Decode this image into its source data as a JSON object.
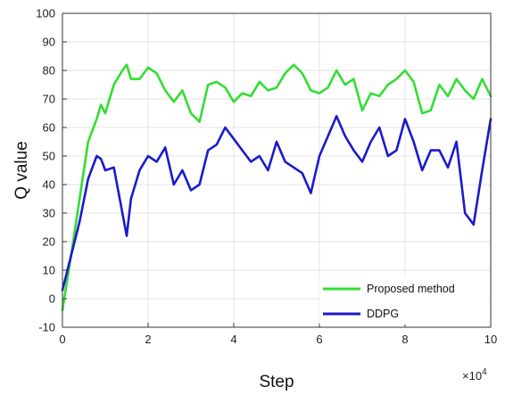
{
  "chart_data": {
    "type": "line",
    "xlabel": "Step",
    "ylabel": "Q value",
    "x_exponent_label": "×10",
    "x_exponent_power": "4",
    "xlim": [
      0,
      10
    ],
    "ylim": [
      -10,
      100
    ],
    "xticks": [
      0,
      2,
      4,
      6,
      8,
      10
    ],
    "xtick_labels": [
      "0",
      "2",
      "4",
      "6",
      "8",
      "10"
    ],
    "yticks": [
      -10,
      0,
      10,
      20,
      30,
      40,
      50,
      60,
      70,
      80,
      90,
      100
    ],
    "ytick_labels": [
      "-10",
      "0",
      "10",
      "20",
      "30",
      "40",
      "50",
      "60",
      "70",
      "80",
      "90",
      "100"
    ],
    "grid": true,
    "legend_position": "bottom-right",
    "series": [
      {
        "name": "Proposed method",
        "color": "#33dd33",
        "x": [
          0,
          0.2,
          0.4,
          0.6,
          0.8,
          0.9,
          1.0,
          1.2,
          1.4,
          1.5,
          1.6,
          1.8,
          2.0,
          2.2,
          2.4,
          2.6,
          2.8,
          3.0,
          3.2,
          3.4,
          3.6,
          3.8,
          4.0,
          4.2,
          4.4,
          4.6,
          4.8,
          5.0,
          5.2,
          5.4,
          5.6,
          5.8,
          6.0,
          6.2,
          6.4,
          6.6,
          6.8,
          7.0,
          7.2,
          7.4,
          7.6,
          7.8,
          8.0,
          8.2,
          8.4,
          8.6,
          8.8,
          9.0,
          9.2,
          9.4,
          9.6,
          9.8,
          10.0
        ],
        "y": [
          -4,
          15,
          35,
          55,
          63,
          68,
          65,
          75,
          80,
          82,
          77,
          77,
          81,
          79,
          73,
          69,
          73,
          65,
          62,
          75,
          76,
          74,
          69,
          72,
          71,
          76,
          73,
          74,
          79,
          82,
          79,
          73,
          72,
          74,
          80,
          75,
          77,
          66,
          72,
          71,
          75,
          77,
          80,
          76,
          65,
          66,
          75,
          71,
          77,
          73,
          70,
          77,
          71
        ]
      },
      {
        "name": "DDPG",
        "color": "#1a1acc",
        "x": [
          0,
          0.2,
          0.4,
          0.6,
          0.8,
          0.9,
          1.0,
          1.2,
          1.4,
          1.5,
          1.6,
          1.8,
          2.0,
          2.2,
          2.4,
          2.6,
          2.8,
          3.0,
          3.2,
          3.4,
          3.6,
          3.8,
          4.0,
          4.2,
          4.4,
          4.6,
          4.8,
          5.0,
          5.2,
          5.4,
          5.6,
          5.8,
          6.0,
          6.2,
          6.4,
          6.6,
          6.8,
          7.0,
          7.2,
          7.4,
          7.6,
          7.8,
          8.0,
          8.2,
          8.4,
          8.6,
          8.8,
          9.0,
          9.2,
          9.4,
          9.6,
          9.8,
          10.0
        ],
        "y": [
          3,
          15,
          27,
          42,
          50,
          49,
          45,
          46,
          30,
          22,
          35,
          45,
          50,
          48,
          53,
          40,
          45,
          38,
          40,
          52,
          54,
          60,
          56,
          52,
          48,
          50,
          45,
          55,
          48,
          46,
          44,
          37,
          50,
          57,
          64,
          57,
          52,
          48,
          55,
          60,
          50,
          52,
          63,
          55,
          45,
          52,
          52,
          46,
          55,
          30,
          26,
          45,
          63
        ]
      }
    ]
  }
}
